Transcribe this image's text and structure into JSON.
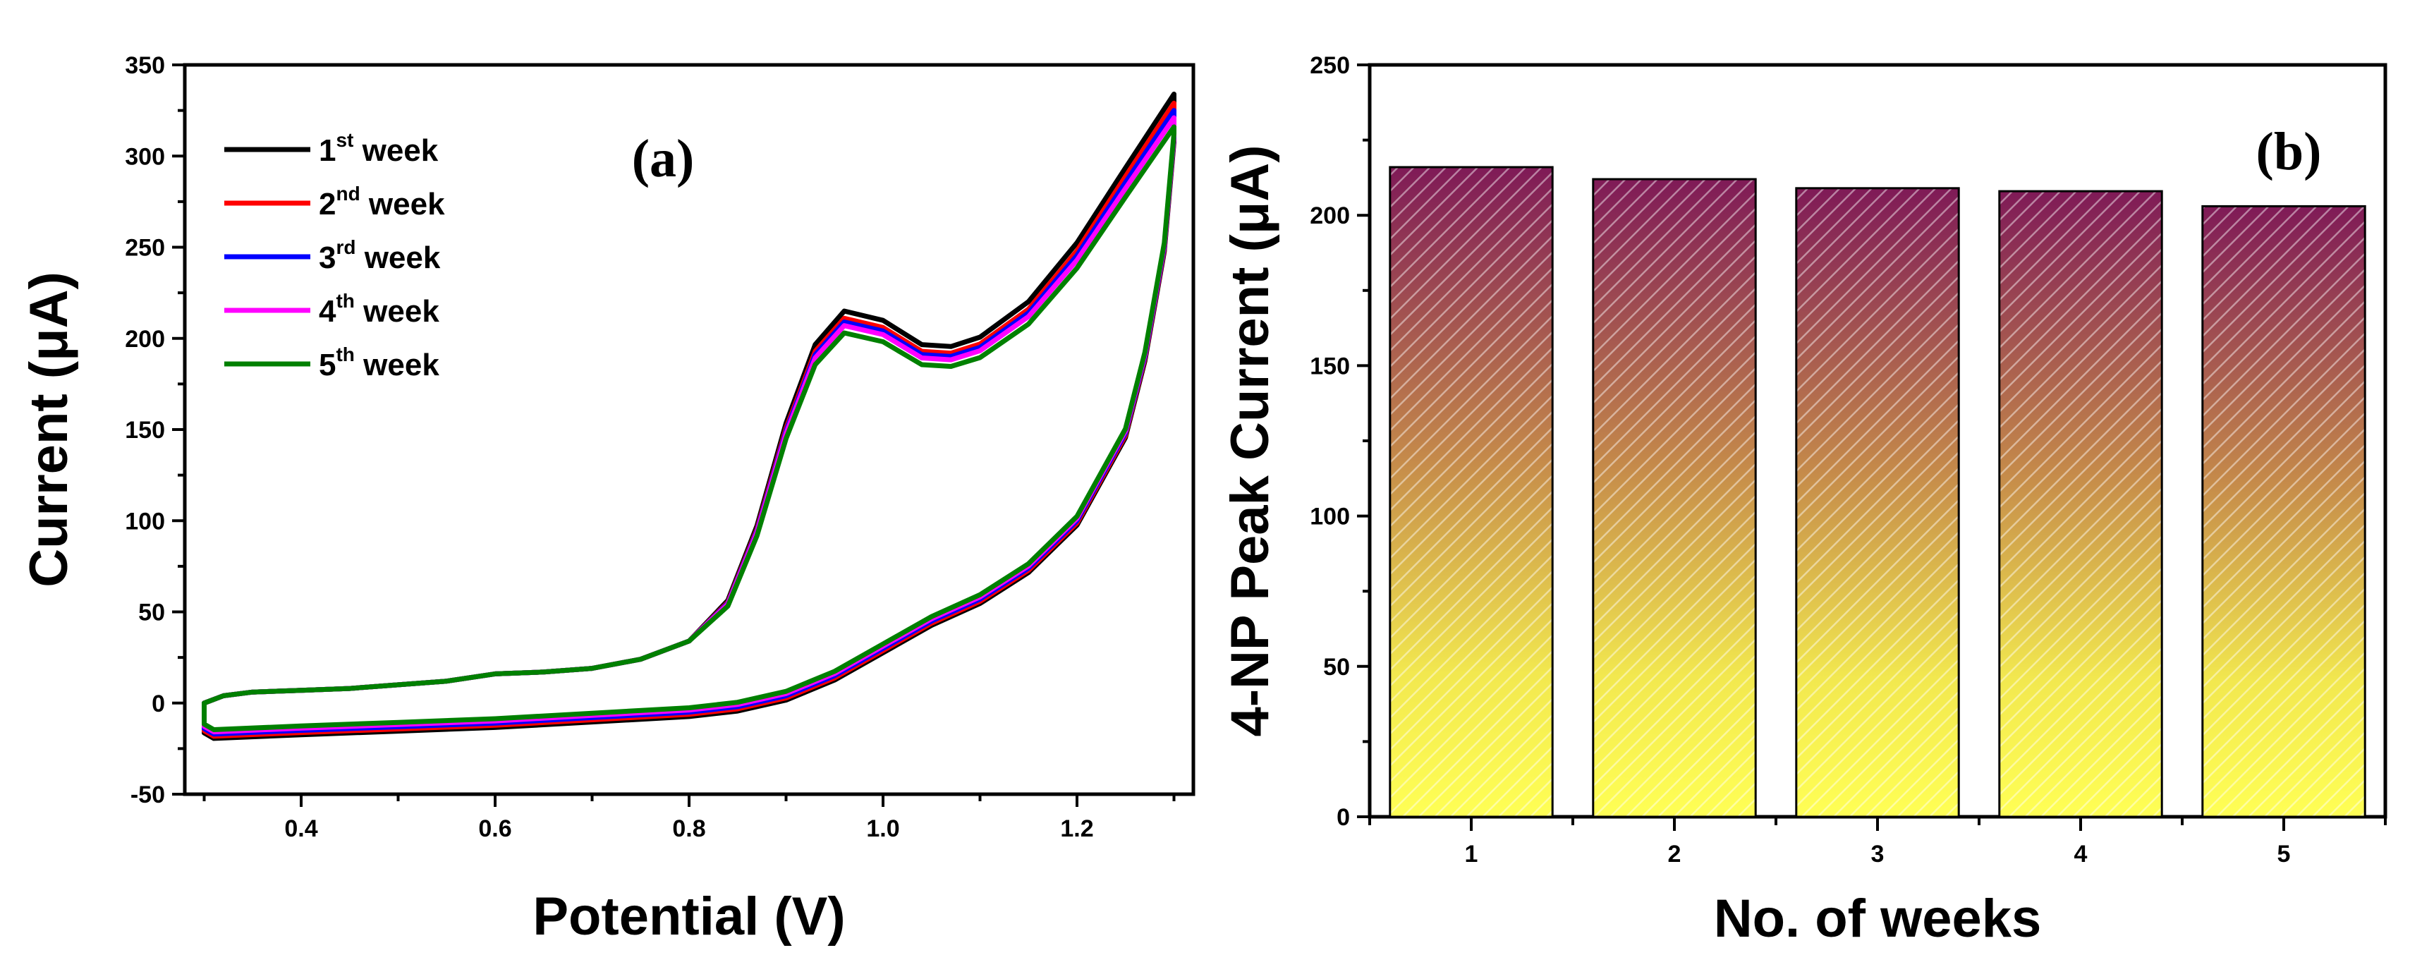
{
  "chart_data": [
    {
      "panel": "a",
      "type": "line",
      "panel_label": "(a)",
      "xlabel": "Potential (V)",
      "ylabel": "Current (μA)",
      "xlim": [
        0.28,
        1.32
      ],
      "ylim": [
        -50,
        350
      ],
      "xticks": [
        "0.4",
        "0.6",
        "0.8",
        "1.0",
        "1.2"
      ],
      "yticks": [
        "-50",
        "0",
        "50",
        "100",
        "150",
        "200",
        "250",
        "300",
        "350"
      ],
      "legend_position": "top-left",
      "series": [
        {
          "name": "1st week",
          "base": "1",
          "sup": "st",
          "suffix": " week",
          "color": "#000000",
          "peak": 215,
          "end": 334
        },
        {
          "name": "2nd week",
          "base": "2",
          "sup": "nd",
          "suffix": " week",
          "color": "#ff0000",
          "peak": 211,
          "end": 329
        },
        {
          "name": "3rd week",
          "base": "3",
          "sup": "rd",
          "suffix": " week",
          "color": "#0000ff",
          "peak": 209,
          "end": 325
        },
        {
          "name": "4th week",
          "base": "4",
          "sup": "th",
          "suffix": " week",
          "color": "#ff00ff",
          "peak": 207,
          "end": 321
        },
        {
          "name": "5th week",
          "base": "5",
          "sup": "th",
          "suffix": " week",
          "color": "#008000",
          "peak": 203,
          "end": 316
        }
      ],
      "forward_template": [
        [
          0.3,
          0
        ],
        [
          0.305,
          1
        ],
        [
          0.32,
          4
        ],
        [
          0.35,
          6
        ],
        [
          0.4,
          7
        ],
        [
          0.45,
          8
        ],
        [
          0.5,
          10
        ],
        [
          0.55,
          12
        ],
        [
          0.6,
          16
        ],
        [
          0.65,
          17
        ],
        [
          0.7,
          19
        ],
        [
          0.75,
          24
        ],
        [
          0.8,
          34
        ],
        [
          0.84,
          55
        ],
        [
          0.87,
          95
        ],
        [
          0.9,
          150
        ],
        [
          0.93,
          192
        ],
        [
          0.96,
          210
        ],
        [
          1.0,
          205
        ],
        [
          1.04,
          192
        ],
        [
          1.07,
          191
        ],
        [
          1.1,
          196
        ],
        [
          1.15,
          215
        ],
        [
          1.2,
          245
        ],
        [
          1.25,
          283
        ],
        [
          1.3,
          320
        ]
      ],
      "reverse_curve": [
        [
          1.3,
          310
        ],
        [
          1.29,
          250
        ],
        [
          1.27,
          190
        ],
        [
          1.25,
          148
        ],
        [
          1.2,
          100
        ],
        [
          1.15,
          74
        ],
        [
          1.1,
          57
        ],
        [
          1.05,
          45
        ],
        [
          1.0,
          30
        ],
        [
          0.95,
          15
        ],
        [
          0.9,
          4
        ],
        [
          0.85,
          -2
        ],
        [
          0.8,
          -5
        ],
        [
          0.7,
          -8
        ],
        [
          0.6,
          -11
        ],
        [
          0.5,
          -13
        ],
        [
          0.4,
          -15
        ],
        [
          0.31,
          -17
        ],
        [
          0.3,
          -14
        ]
      ]
    },
    {
      "panel": "b",
      "type": "bar",
      "panel_label": "(b)",
      "xlabel": "No. of weeks",
      "ylabel": "4-NP Peak Current (μA)",
      "categories": [
        "1",
        "2",
        "3",
        "4",
        "5"
      ],
      "values": [
        216,
        212,
        209,
        208,
        203
      ],
      "ylim": [
        0,
        250
      ],
      "yticks": [
        "0",
        "50",
        "100",
        "150",
        "200",
        "250"
      ],
      "bar_gradient": {
        "top": "#7f1a57",
        "bottom": "#ffff55"
      }
    }
  ]
}
